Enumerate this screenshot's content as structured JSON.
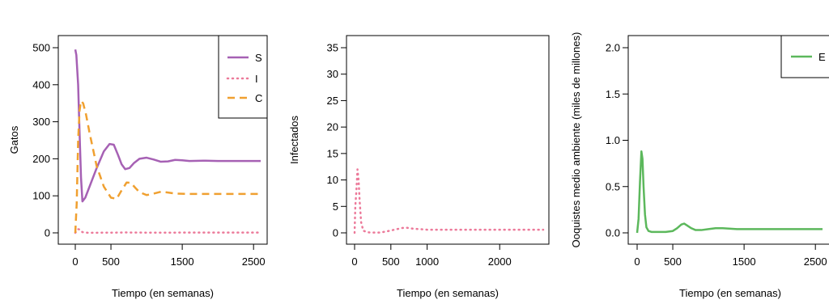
{
  "colors": {
    "S": "#a661b4",
    "I": "#ec7a9a",
    "C": "#f0a030",
    "E": "#5cb85c"
  },
  "chart_data": [
    {
      "type": "line",
      "xlabel": "Tiempo (en semanas)",
      "ylabel": "Gatos",
      "xlim": [
        0,
        2600
      ],
      "ylim": [
        0,
        500
      ],
      "xticks": [
        0,
        500,
        1500,
        2500
      ],
      "yticks": [
        0,
        100,
        200,
        300,
        400,
        500
      ],
      "legend": {
        "position": "top-right",
        "entries": [
          "S",
          "I",
          "C"
        ]
      },
      "series": [
        {
          "name": "S",
          "style": "solid",
          "color_key": "S",
          "x": [
            0,
            15,
            40,
            60,
            80,
            100,
            140,
            200,
            300,
            400,
            480,
            540,
            600,
            650,
            700,
            760,
            820,
            900,
            1000,
            1100,
            1200,
            1300,
            1400,
            1500,
            1600,
            1800,
            2000,
            2200,
            2400,
            2600
          ],
          "y": [
            495,
            480,
            400,
            270,
            150,
            85,
            95,
            125,
            175,
            220,
            240,
            238,
            210,
            185,
            172,
            175,
            188,
            200,
            203,
            198,
            192,
            193,
            197,
            196,
            194,
            195,
            194,
            194,
            194,
            194
          ]
        },
        {
          "name": "I",
          "style": "dotted",
          "color_key": "I",
          "x": [
            0,
            20,
            40,
            60,
            80,
            100,
            150,
            200,
            300,
            500,
            700,
            1000,
            1500,
            2000,
            2600
          ],
          "y": [
            0,
            6,
            10,
            9,
            5,
            2,
            0.5,
            0.3,
            0.4,
            0.5,
            1,
            0.6,
            0.7,
            0.7,
            0.7
          ]
        },
        {
          "name": "C",
          "style": "dashed",
          "color_key": "C",
          "x": [
            0,
            20,
            40,
            60,
            80,
            110,
            150,
            200,
            300,
            400,
            500,
            580,
            650,
            720,
            780,
            840,
            900,
            1000,
            1100,
            1200,
            1300,
            1400,
            1600,
            1800,
            2000,
            2300,
            2600
          ],
          "y": [
            0,
            80,
            250,
            330,
            356,
            350,
            320,
            270,
            180,
            125,
            95,
            92,
            115,
            136,
            135,
            122,
            110,
            102,
            106,
            111,
            109,
            106,
            105,
            105,
            105,
            105,
            105
          ]
        }
      ]
    },
    {
      "type": "line",
      "xlabel": "Tiempo (en semanas)",
      "ylabel": "Infectados",
      "xlim": [
        0,
        2600
      ],
      "ylim": [
        0,
        35
      ],
      "xticks": [
        0,
        500,
        1000,
        2000
      ],
      "yticks": [
        0,
        5,
        10,
        15,
        20,
        25,
        30,
        35
      ],
      "series": [
        {
          "name": "I",
          "style": "dotted",
          "color_key": "I",
          "x": [
            0,
            10,
            25,
            40,
            55,
            70,
            90,
            120,
            180,
            260,
            350,
            450,
            550,
            650,
            700,
            800,
            1000,
            1300,
            1600,
            2000,
            2300,
            2600
          ],
          "y": [
            0,
            5,
            8,
            12,
            10,
            6,
            2,
            0.4,
            0.1,
            0.05,
            0.05,
            0.3,
            0.6,
            0.9,
            1,
            0.8,
            0.6,
            0.6,
            0.6,
            0.6,
            0.6,
            0.6
          ]
        }
      ]
    },
    {
      "type": "line",
      "xlabel": "Tiempo (en semanas)",
      "ylabel": "Ooquistes medio ambiente (miles de millones)",
      "xlim": [
        0,
        2600
      ],
      "ylim": [
        0,
        2.0
      ],
      "xticks": [
        0,
        500,
        1500,
        2500
      ],
      "yticks": [
        "0.0",
        "0.5",
        "1.0",
        "1.5",
        "2.0"
      ],
      "legend": {
        "position": "top-right",
        "entries": [
          "E"
        ]
      },
      "series": [
        {
          "name": "E",
          "style": "solid",
          "color_key": "E",
          "x": [
            0,
            20,
            40,
            60,
            75,
            90,
            110,
            130,
            160,
            200,
            300,
            400,
            500,
            560,
            620,
            660,
            700,
            760,
            820,
            900,
            1000,
            1100,
            1200,
            1400,
            1600,
            1800,
            2000,
            2300,
            2600
          ],
          "y": [
            0.0,
            0.15,
            0.55,
            0.88,
            0.8,
            0.5,
            0.2,
            0.06,
            0.02,
            0.01,
            0.01,
            0.01,
            0.02,
            0.05,
            0.09,
            0.1,
            0.08,
            0.05,
            0.03,
            0.03,
            0.04,
            0.05,
            0.05,
            0.04,
            0.04,
            0.04,
            0.04,
            0.04,
            0.04
          ]
        }
      ]
    }
  ]
}
